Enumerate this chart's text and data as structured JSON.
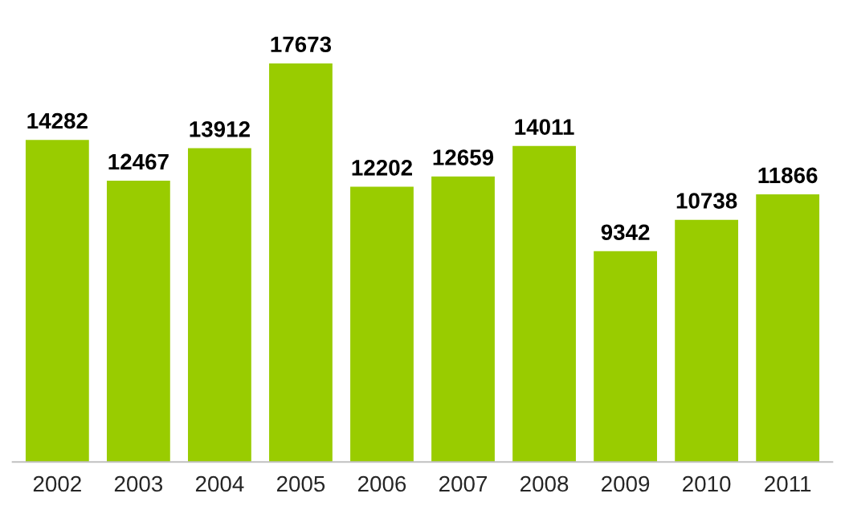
{
  "chart_data": {
    "type": "bar",
    "categories": [
      "2002",
      "2003",
      "2004",
      "2005",
      "2006",
      "2007",
      "2008",
      "2009",
      "2010",
      "2011"
    ],
    "values": [
      14282,
      12467,
      13912,
      17673,
      12202,
      12659,
      14011,
      9342,
      10738,
      11866
    ],
    "color": "#99cc00",
    "data_labels": true,
    "grid": false,
    "legend": false
  }
}
